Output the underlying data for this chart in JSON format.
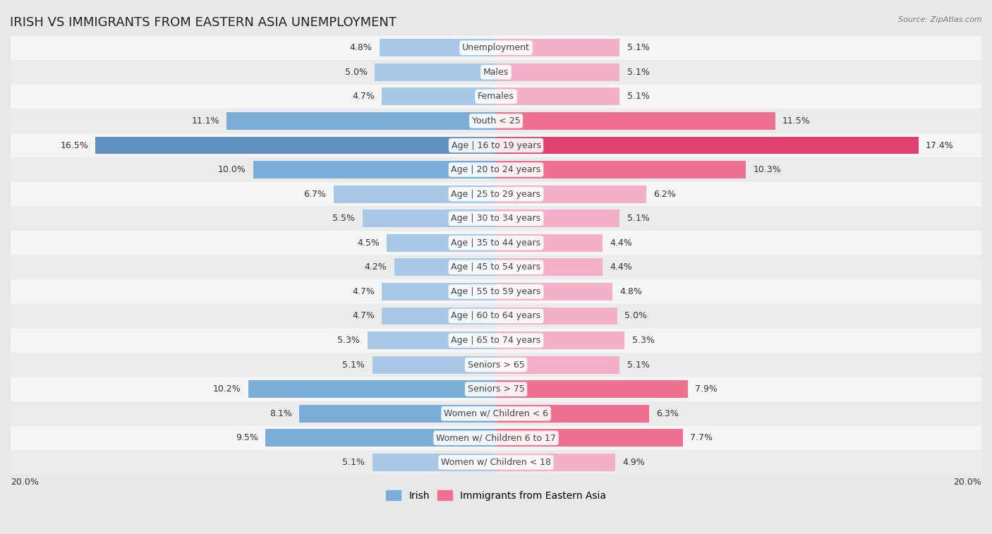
{
  "title": "IRISH VS IMMIGRANTS FROM EASTERN ASIA UNEMPLOYMENT",
  "source": "Source: ZipAtlas.com",
  "categories": [
    "Unemployment",
    "Males",
    "Females",
    "Youth < 25",
    "Age | 16 to 19 years",
    "Age | 20 to 24 years",
    "Age | 25 to 29 years",
    "Age | 30 to 34 years",
    "Age | 35 to 44 years",
    "Age | 45 to 54 years",
    "Age | 55 to 59 years",
    "Age | 60 to 64 years",
    "Age | 65 to 74 years",
    "Seniors > 65",
    "Seniors > 75",
    "Women w/ Children < 6",
    "Women w/ Children 6 to 17",
    "Women w/ Children < 18"
  ],
  "irish_values": [
    4.8,
    5.0,
    4.7,
    11.1,
    16.5,
    10.0,
    6.7,
    5.5,
    4.5,
    4.2,
    4.7,
    4.7,
    5.3,
    5.1,
    10.2,
    8.1,
    9.5,
    5.1
  ],
  "eastern_asia_values": [
    5.1,
    5.1,
    5.1,
    11.5,
    17.4,
    10.3,
    6.2,
    5.1,
    4.4,
    4.4,
    4.8,
    5.0,
    5.3,
    5.1,
    7.9,
    6.3,
    7.7,
    4.9
  ],
  "irish_color_normal": "#a8c8e8",
  "eastern_asia_color_normal": "#f4b0c8",
  "irish_color_highlight": "#7aaed8",
  "eastern_asia_color_highlight": "#f07090",
  "irish_color_darkest": "#6090c0",
  "eastern_asia_color_darkest": "#e04070",
  "highlight_rows": [
    "Youth < 25",
    "Age | 16 to 19 years",
    "Age | 20 to 24 years",
    "Seniors > 75",
    "Women w/ Children < 6",
    "Women w/ Children 6 to 17"
  ],
  "darkest_rows": [
    "Age | 16 to 19 years"
  ],
  "row_colors": [
    "#f5f5f5",
    "#ebebeb"
  ],
  "background_color": "#e8e8e8",
  "axis_max": 20.0,
  "bar_height": 0.72,
  "legend_irish": "Irish",
  "legend_ea": "Immigrants from Eastern Asia",
  "value_fontsize": 9,
  "category_fontsize": 9,
  "title_fontsize": 13
}
